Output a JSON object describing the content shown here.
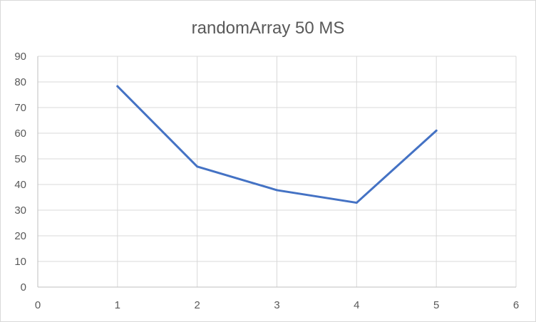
{
  "chart_data": {
    "type": "line",
    "title": "randomArray  50 MS",
    "xlabel": "",
    "ylabel": "",
    "xlim": [
      0,
      6
    ],
    "ylim": [
      0,
      90
    ],
    "x_ticks": [
      0,
      1,
      2,
      3,
      4,
      5,
      6
    ],
    "y_ticks": [
      0,
      10,
      20,
      30,
      40,
      50,
      60,
      70,
      80,
      90
    ],
    "grid": true,
    "legend": "none",
    "series": [
      {
        "x": [
          1,
          2,
          3,
          4,
          5
        ],
        "values": [
          78.3,
          47,
          37.8,
          32.9,
          61
        ],
        "color": "#4472c4"
      }
    ],
    "gridline_color": "#d9d9d9",
    "axis_color": "#bfbfbf",
    "text_color": "#595959"
  }
}
